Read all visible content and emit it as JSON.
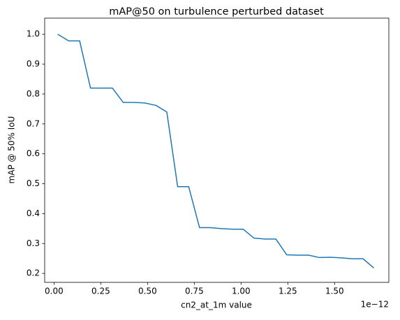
{
  "chart_data": {
    "type": "line",
    "title": "mAP@50 on turbulence perturbed dataset",
    "x_label": "cn2_at_1m value",
    "x_offset_label": "1e−12",
    "y_label": "mAP @ 50% IoU",
    "x": [
      0.02,
      0.078,
      0.137,
      0.195,
      0.253,
      0.312,
      0.37,
      0.428,
      0.486,
      0.545,
      0.603,
      0.661,
      0.72,
      0.778,
      0.836,
      0.894,
      0.953,
      1.011,
      1.069,
      1.128,
      1.186,
      1.244,
      1.303,
      1.361,
      1.419,
      1.477,
      1.536,
      1.594,
      1.652,
      1.71
    ],
    "series": [
      {
        "color": "#1f77b4",
        "values": [
          1.0,
          0.978,
          0.978,
          0.82,
          0.82,
          0.82,
          0.772,
          0.772,
          0.77,
          0.762,
          0.74,
          0.49,
          0.49,
          0.353,
          0.353,
          0.35,
          0.348,
          0.348,
          0.318,
          0.315,
          0.315,
          0.262,
          0.261,
          0.261,
          0.253,
          0.254,
          0.252,
          0.249,
          0.249,
          0.218
        ]
      }
    ],
    "xlim": [
      -0.05,
      1.79
    ],
    "ylim": [
      0.17,
      1.054
    ],
    "xticks": [
      {
        "value": 0,
        "label": "0.00"
      },
      0.25,
      {
        "value": 0.5,
        "label": "0.50"
      },
      0.75,
      {
        "value": 1,
        "label": "1.00"
      },
      1.25,
      {
        "value": 1.5,
        "label": "1.50"
      }
    ],
    "yticks": [
      0.2,
      0.3,
      0.4,
      0.5,
      0.6,
      0.7,
      0.8,
      0.9,
      {
        "value": 1,
        "label": "1.0"
      }
    ],
    "grid": false
  }
}
